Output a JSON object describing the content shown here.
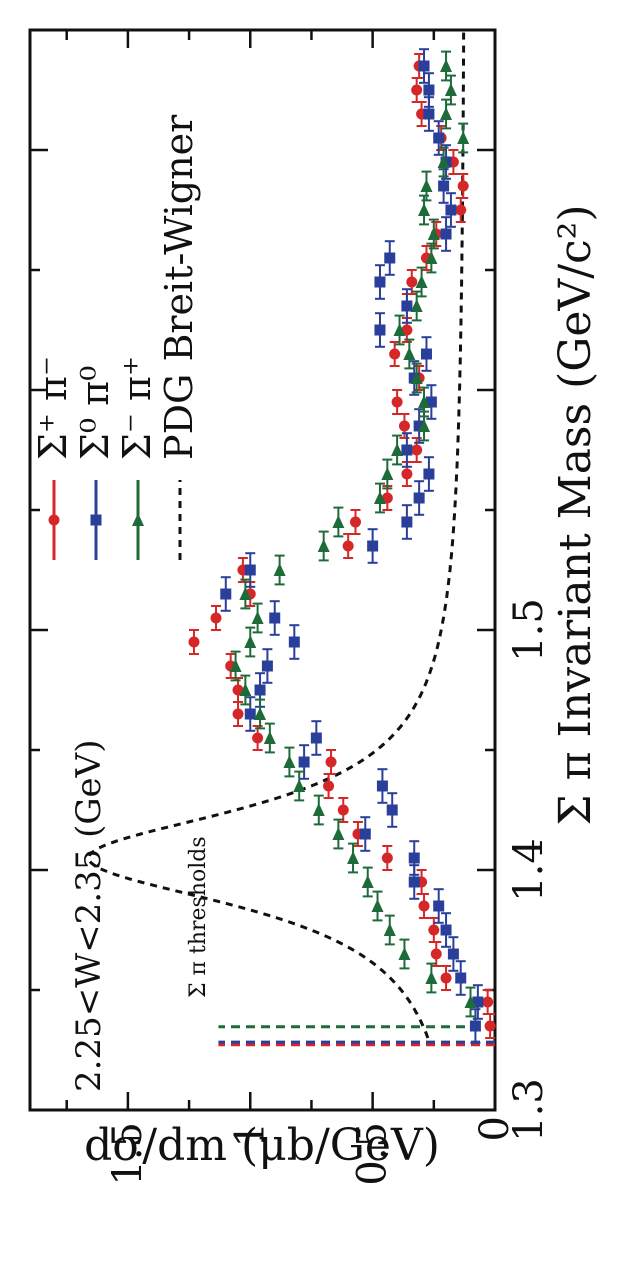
{
  "chart_data": {
    "type": "scatter",
    "title": "",
    "xlabel": "Σ π Invariant Mass (GeV/c²)",
    "ylabel": "dσ/dm (μb/GeV)",
    "xlim": [
      1.3,
      1.75
    ],
    "ylim": [
      0,
      1.9
    ],
    "x_ticks": [
      1.3,
      1.4,
      1.5
    ],
    "x_tick_labels": [
      "1.3",
      "1.4",
      "1.5"
    ],
    "y_ticks": [
      0,
      0.5,
      1,
      1.5
    ],
    "y_tick_labels": [
      "0",
      "0.5",
      "1",
      "1.5"
    ],
    "grid": false,
    "legend_position": "top-right",
    "annotations": {
      "w_range": "2.25<W<2.35 (GeV)",
      "thresholds": "Σ π thresholds"
    },
    "thresholds": [
      {
        "x": 1.3272,
        "color": "#d62728"
      },
      {
        "x": 1.3283,
        "color": "#2a3f9a"
      },
      {
        "x": 1.3347,
        "color": "#1e6b3a"
      }
    ],
    "series": [
      {
        "name": "Σ⁺ π⁻",
        "marker": "circle",
        "color": "#d62728",
        "x": [
          1.335,
          1.345,
          1.355,
          1.365,
          1.375,
          1.385,
          1.395,
          1.405,
          1.415,
          1.425,
          1.435,
          1.445,
          1.455,
          1.465,
          1.475,
          1.485,
          1.495,
          1.505,
          1.515,
          1.525,
          1.535,
          1.545,
          1.555,
          1.565,
          1.575,
          1.585,
          1.595,
          1.605,
          1.615,
          1.625,
          1.635,
          1.645,
          1.655,
          1.665,
          1.675,
          1.685,
          1.695,
          1.705,
          1.715,
          1.725,
          1.735
        ],
        "y": [
          0.02,
          0.03,
          0.2,
          0.24,
          0.25,
          0.29,
          0.3,
          0.44,
          0.56,
          0.62,
          0.68,
          0.67,
          0.97,
          1.05,
          1.05,
          1.08,
          1.23,
          1.14,
          1.0,
          1.03,
          0.6,
          0.57,
          0.44,
          0.36,
          0.32,
          0.37,
          0.4,
          0.31,
          0.41,
          0.36,
          0.36,
          0.34,
          0.28,
          0.24,
          0.14,
          0.13,
          0.17,
          0.22,
          0.3,
          0.32,
          0.31
        ],
        "x_err": 0.005
      },
      {
        "name": "Σ⁰ π⁰",
        "marker": "square",
        "color": "#2a3f9a",
        "x": [
          1.335,
          1.345,
          1.355,
          1.365,
          1.375,
          1.385,
          1.395,
          1.405,
          1.415,
          1.425,
          1.435,
          1.445,
          1.455,
          1.465,
          1.475,
          1.485,
          1.495,
          1.505,
          1.515,
          1.525,
          1.535,
          1.545,
          1.555,
          1.565,
          1.575,
          1.585,
          1.595,
          1.605,
          1.615,
          1.625,
          1.635,
          1.645,
          1.655,
          1.665,
          1.675,
          1.685,
          1.695,
          1.705,
          1.715,
          1.725,
          1.735
        ],
        "y": [
          0.08,
          0.07,
          0.14,
          0.17,
          0.2,
          0.23,
          0.33,
          0.33,
          0.53,
          0.42,
          0.46,
          0.78,
          0.73,
          1.0,
          0.96,
          0.93,
          0.82,
          0.9,
          1.1,
          1.0,
          0.5,
          0.36,
          0.31,
          0.27,
          0.36,
          0.31,
          0.26,
          0.33,
          0.28,
          0.47,
          0.36,
          0.47,
          0.43,
          0.2,
          0.18,
          0.21,
          0.2,
          0.23,
          0.27,
          0.27,
          0.29
        ],
        "x_err": 0.007
      },
      {
        "name": "Σ⁻ π⁺",
        "marker": "triangle-right",
        "color": "#1e6b3a",
        "x": [
          1.345,
          1.355,
          1.365,
          1.375,
          1.385,
          1.395,
          1.405,
          1.415,
          1.425,
          1.435,
          1.445,
          1.455,
          1.465,
          1.475,
          1.485,
          1.495,
          1.505,
          1.515,
          1.525,
          1.535,
          1.545,
          1.555,
          1.565,
          1.575,
          1.585,
          1.595,
          1.605,
          1.615,
          1.625,
          1.635,
          1.645,
          1.655,
          1.665,
          1.675,
          1.685,
          1.695,
          1.705,
          1.715,
          1.725,
          1.735
        ],
        "y": [
          0.1,
          0.26,
          0.37,
          0.43,
          0.48,
          0.52,
          0.58,
          0.64,
          0.72,
          0.8,
          0.84,
          0.92,
          0.96,
          1.02,
          1.06,
          1.0,
          0.97,
          1.02,
          0.88,
          0.7,
          0.64,
          0.47,
          0.44,
          0.4,
          0.29,
          0.29,
          0.32,
          0.35,
          0.39,
          0.32,
          0.3,
          0.26,
          0.25,
          0.29,
          0.28,
          0.21,
          0.13,
          0.2,
          0.18,
          0.2
        ],
        "x_err": 0.006
      },
      {
        "name": "PDG Breit-Wigner",
        "style": "dashed-curve",
        "color": "#111111",
        "mass": 1.405,
        "width": 0.05,
        "peak": 1.66,
        "baseline": 0.12
      }
    ]
  }
}
